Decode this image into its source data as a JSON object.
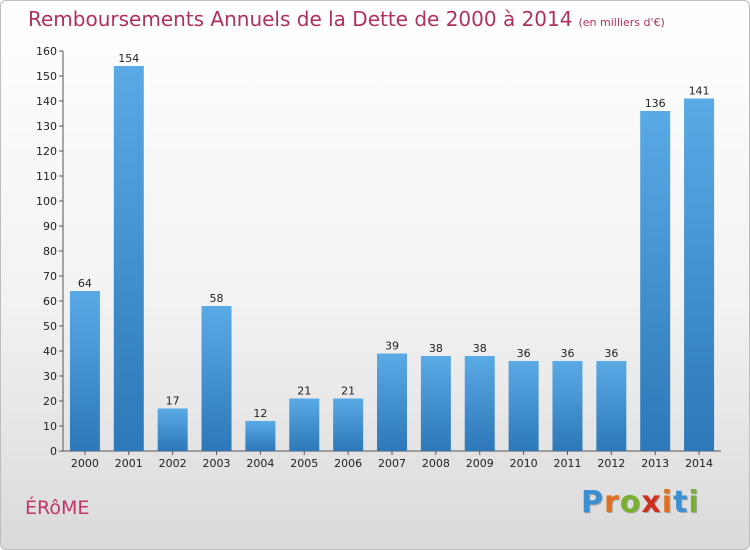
{
  "chart_data": {
    "type": "bar",
    "title": "Remboursements Annuels de la Dette de 2000 à 2014",
    "subtitle": "(en milliers d'€)",
    "categories": [
      "2000",
      "2001",
      "2002",
      "2003",
      "2004",
      "2005",
      "2006",
      "2007",
      "2008",
      "2009",
      "2010",
      "2011",
      "2012",
      "2013",
      "2014"
    ],
    "values": [
      64,
      154,
      17,
      58,
      12,
      21,
      21,
      39,
      38,
      38,
      36,
      36,
      36,
      136,
      141
    ],
    "xlabel": "",
    "ylabel": "",
    "ylim": [
      0,
      160
    ],
    "yticks": [
      0,
      10,
      20,
      30,
      40,
      50,
      60,
      70,
      80,
      90,
      100,
      110,
      120,
      130,
      140,
      150,
      160
    ],
    "grid": false,
    "bar_color": "#3c8fd0",
    "bar_color_light": "#5aaae6",
    "bar_color_dark": "#2d78b8"
  },
  "footer": {
    "commune": "ÉRôME",
    "brand": [
      "P",
      "r",
      "o",
      "x",
      "i",
      "t",
      "i"
    ],
    "brand_colors": [
      "#3c8fd0",
      "#e07020",
      "#7ab030",
      "#d03020",
      "#e07020",
      "#3c8fd0",
      "#7ab030"
    ]
  }
}
